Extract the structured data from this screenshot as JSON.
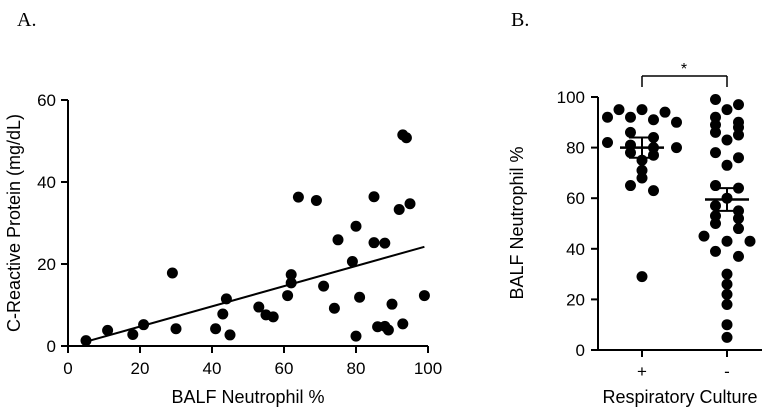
{
  "panel_a_letter": "A.",
  "panel_b_letter": "B.",
  "chart_data": [
    {
      "type": "scatter",
      "xlabel": "BALF Neutrophil %",
      "ylabel": "C-Reactive Protein (mg/dL)",
      "xlim": [
        0,
        100
      ],
      "ylim": [
        0,
        60
      ],
      "xticks": [
        "0",
        "20",
        "40",
        "60",
        "80",
        "100"
      ],
      "yticks": [
        "0",
        "20",
        "40",
        "60"
      ],
      "points": [
        [
          5,
          1.3
        ],
        [
          11,
          3.8
        ],
        [
          18,
          2.8
        ],
        [
          21,
          5.2
        ],
        [
          29,
          17.8
        ],
        [
          30,
          4.2
        ],
        [
          41,
          4.2
        ],
        [
          43,
          7.8
        ],
        [
          44,
          11.5
        ],
        [
          45,
          2.7
        ],
        [
          53,
          9.5
        ],
        [
          55,
          7.6
        ],
        [
          57,
          7.1
        ],
        [
          61,
          12.3
        ],
        [
          62,
          15.4
        ],
        [
          62,
          17.4
        ],
        [
          64,
          36.3
        ],
        [
          69,
          35.5
        ],
        [
          71,
          14.6
        ],
        [
          74,
          9.2
        ],
        [
          75,
          25.9
        ],
        [
          79,
          20.6
        ],
        [
          80,
          2.4
        ],
        [
          80,
          29.2
        ],
        [
          81,
          11.9
        ],
        [
          85,
          36.4
        ],
        [
          85,
          25.2
        ],
        [
          86,
          4.7
        ],
        [
          88,
          4.8
        ],
        [
          88,
          25.1
        ],
        [
          89,
          3.9
        ],
        [
          90,
          10.2
        ],
        [
          92,
          33.3
        ],
        [
          93,
          5.4
        ],
        [
          93,
          51.5
        ],
        [
          94,
          50.8
        ],
        [
          95,
          34.7
        ],
        [
          99,
          12.3
        ]
      ],
      "trendline": {
        "x": [
          4,
          99
        ],
        "y": [
          0.8,
          24.2
        ]
      }
    },
    {
      "type": "scatter",
      "xlabel": "Respiratory Culture",
      "ylabel": "BALF Neutrophil %",
      "ylim": [
        0,
        100
      ],
      "yticks": [
        "0",
        "20",
        "40",
        "60",
        "80",
        "100"
      ],
      "categories": [
        "+",
        "-"
      ],
      "groups": [
        {
          "category": "+",
          "mean": 80,
          "error": [
            76,
            84
          ],
          "values": [
            95,
            94,
            95,
            92,
            92,
            91,
            90,
            86,
            84,
            82,
            81,
            80,
            80,
            78,
            77,
            75,
            71,
            68,
            65,
            63,
            29
          ]
        },
        {
          "category": "-",
          "mean": 59.5,
          "error": [
            55,
            64
          ],
          "values": [
            99,
            97,
            95,
            92,
            90,
            89,
            88,
            86,
            85,
            83,
            78,
            76,
            73,
            65,
            64,
            60,
            57,
            55,
            53,
            52,
            50,
            48,
            45,
            43,
            43,
            39,
            37,
            30,
            26,
            22,
            18,
            10,
            5
          ]
        }
      ],
      "significance_label": "*"
    }
  ]
}
